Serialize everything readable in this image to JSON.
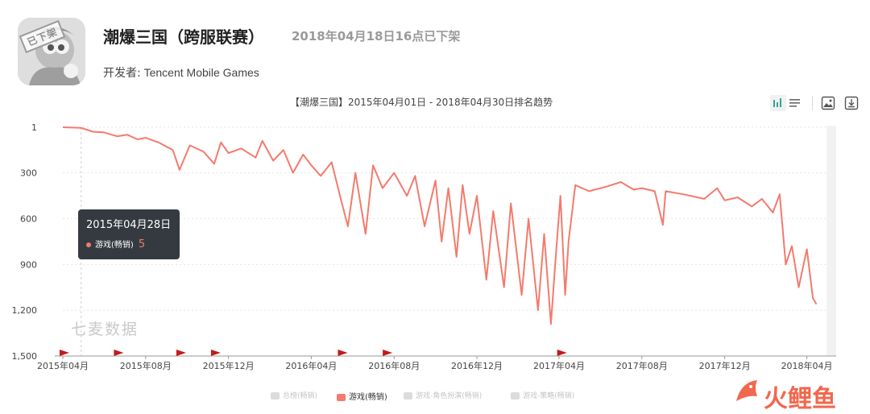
{
  "app": {
    "title": "潮爆三国（跨服联赛）",
    "status": "2018年04月18日16点已下架",
    "developer_label": "开发者:",
    "developer": "Tencent Mobile Games",
    "stamp": "已下架"
  },
  "toolbar": {
    "icons": [
      "bar-chart-icon",
      "list-icon",
      "image-icon",
      "download-icon"
    ]
  },
  "tooltip": {
    "date": "2015年04月28日",
    "series": "游戏(畅销)",
    "value": "5"
  },
  "watermark": "七麦数据",
  "brand": {
    "text": "火鲤鱼",
    "color": "#f1684e"
  },
  "legend": [
    {
      "label": "总榜(畅销)",
      "active": false
    },
    {
      "label": "游戏(畅销)",
      "active": true
    },
    {
      "label": "游戏-角色扮演(畅销)",
      "active": false
    },
    {
      "label": "游戏-策略(畅销)",
      "active": false
    }
  ],
  "chart_data": {
    "type": "line",
    "title": "【潮爆三国】2015年04月01日 - 2018年04月30日排名趋势",
    "y_reversed": true,
    "ylim": [
      1,
      1500
    ],
    "yticks": [
      {
        "value": 1,
        "label": "1"
      },
      {
        "value": 300,
        "label": "300"
      },
      {
        "value": 600,
        "label": "600"
      },
      {
        "value": 900,
        "label": "900"
      },
      {
        "value": 1200,
        "label": "1,200"
      },
      {
        "value": 1500,
        "label": "1,500"
      }
    ],
    "xlim": [
      "2015-04-01",
      "2018-04-30"
    ],
    "xticks": [
      {
        "value": "2015-04-01",
        "label": "2015年04月"
      },
      {
        "value": "2015-08-01",
        "label": "2015年08月"
      },
      {
        "value": "2015-12-01",
        "label": "2015年12月"
      },
      {
        "value": "2016-04-01",
        "label": "2016年04月"
      },
      {
        "value": "2016-08-01",
        "label": "2016年08月"
      },
      {
        "value": "2016-12-01",
        "label": "2016年12月"
      },
      {
        "value": "2017-04-01",
        "label": "2017年04月"
      },
      {
        "value": "2017-08-01",
        "label": "2017年08月"
      },
      {
        "value": "2017-12-01",
        "label": "2017年12月"
      },
      {
        "value": "2018-04-01",
        "label": "2018年04月"
      }
    ],
    "grid": true,
    "legend_position": "bottom",
    "color": "#f47a6c",
    "series": [
      {
        "name": "游戏(畅销)",
        "points": [
          [
            "2015-04-01",
            1
          ],
          [
            "2015-04-28",
            5
          ],
          [
            "2015-05-15",
            30
          ],
          [
            "2015-06-01",
            35
          ],
          [
            "2015-06-20",
            60
          ],
          [
            "2015-07-05",
            50
          ],
          [
            "2015-07-20",
            80
          ],
          [
            "2015-08-01",
            70
          ],
          [
            "2015-08-20",
            100
          ],
          [
            "2015-09-10",
            150
          ],
          [
            "2015-09-20",
            280
          ],
          [
            "2015-10-05",
            120
          ],
          [
            "2015-10-25",
            160
          ],
          [
            "2015-11-10",
            240
          ],
          [
            "2015-11-20",
            100
          ],
          [
            "2015-12-01",
            170
          ],
          [
            "2015-12-20",
            140
          ],
          [
            "2016-01-10",
            200
          ],
          [
            "2016-01-20",
            90
          ],
          [
            "2016-02-05",
            220
          ],
          [
            "2016-02-20",
            150
          ],
          [
            "2016-03-05",
            300
          ],
          [
            "2016-03-20",
            180
          ],
          [
            "2016-04-01",
            250
          ],
          [
            "2016-04-15",
            320
          ],
          [
            "2016-05-01",
            230
          ],
          [
            "2016-05-15",
            480
          ],
          [
            "2016-05-25",
            650
          ],
          [
            "2016-06-05",
            300
          ],
          [
            "2016-06-20",
            700
          ],
          [
            "2016-07-01",
            250
          ],
          [
            "2016-07-15",
            400
          ],
          [
            "2016-08-01",
            300
          ],
          [
            "2016-08-20",
            450
          ],
          [
            "2016-09-01",
            320
          ],
          [
            "2016-09-15",
            650
          ],
          [
            "2016-10-01",
            350
          ],
          [
            "2016-10-10",
            750
          ],
          [
            "2016-10-20",
            400
          ],
          [
            "2016-11-01",
            850
          ],
          [
            "2016-11-10",
            380
          ],
          [
            "2016-11-20",
            700
          ],
          [
            "2016-12-01",
            450
          ],
          [
            "2016-12-15",
            1000
          ],
          [
            "2016-12-25",
            550
          ],
          [
            "2017-01-10",
            1050
          ],
          [
            "2017-01-20",
            500
          ],
          [
            "2017-02-05",
            1100
          ],
          [
            "2017-02-15",
            600
          ],
          [
            "2017-03-01",
            1200
          ],
          [
            "2017-03-10",
            700
          ],
          [
            "2017-03-20",
            1290
          ],
          [
            "2017-03-28",
            800
          ],
          [
            "2017-04-03",
            450
          ],
          [
            "2017-04-10",
            1100
          ],
          [
            "2017-04-15",
            750
          ],
          [
            "2017-04-25",
            380
          ],
          [
            "2017-05-15",
            420
          ],
          [
            "2017-06-10",
            390
          ],
          [
            "2017-07-01",
            360
          ],
          [
            "2017-07-20",
            410
          ],
          [
            "2017-08-01",
            400
          ],
          [
            "2017-08-20",
            420
          ],
          [
            "2017-09-01",
            640
          ],
          [
            "2017-09-05",
            420
          ],
          [
            "2017-10-01",
            440
          ],
          [
            "2017-11-01",
            470
          ],
          [
            "2017-11-20",
            400
          ],
          [
            "2017-12-01",
            480
          ],
          [
            "2017-12-20",
            460
          ],
          [
            "2018-01-10",
            520
          ],
          [
            "2018-01-25",
            470
          ],
          [
            "2018-02-10",
            560
          ],
          [
            "2018-02-20",
            440
          ],
          [
            "2018-03-01",
            900
          ],
          [
            "2018-03-10",
            780
          ],
          [
            "2018-03-20",
            1050
          ],
          [
            "2018-04-01",
            800
          ],
          [
            "2018-04-10",
            1120
          ],
          [
            "2018-04-15",
            1160
          ]
        ]
      }
    ],
    "flags": [
      "2015-04-01",
      "2015-06-20",
      "2015-09-20",
      "2015-11-10",
      "2016-05-15",
      "2016-07-20",
      "2017-04-03"
    ]
  }
}
